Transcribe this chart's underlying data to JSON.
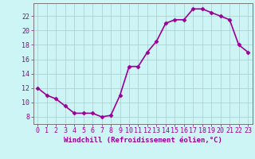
{
  "x": [
    0,
    1,
    2,
    3,
    4,
    5,
    6,
    7,
    8,
    9,
    10,
    11,
    12,
    13,
    14,
    15,
    16,
    17,
    18,
    19,
    20,
    21,
    22,
    23
  ],
  "y": [
    12,
    11,
    10.5,
    9.5,
    8.5,
    8.5,
    8.5,
    8,
    8.2,
    11,
    15,
    15,
    17,
    18.5,
    21,
    21.5,
    21.5,
    23,
    23,
    22.5,
    22,
    21.5,
    18,
    17
  ],
  "line_color": "#990099",
  "marker": "D",
  "marker_size": 2.5,
  "bg_color": "#cef5f5",
  "grid_color": "#aacccc",
  "xlabel": "Windchill (Refroidissement éolien,°C)",
  "xlabel_fontsize": 6.5,
  "xtick_labels": [
    "0",
    "1",
    "2",
    "3",
    "4",
    "5",
    "6",
    "7",
    "8",
    "9",
    "10",
    "11",
    "12",
    "13",
    "14",
    "15",
    "16",
    "17",
    "18",
    "19",
    "20",
    "21",
    "22",
    "23"
  ],
  "ytick_labels": [
    "8",
    "10",
    "12",
    "14",
    "16",
    "18",
    "20",
    "22"
  ],
  "yticks": [
    8,
    10,
    12,
    14,
    16,
    18,
    20,
    22
  ],
  "ylim": [
    7.0,
    23.8
  ],
  "xlim": [
    -0.5,
    23.5
  ],
  "tick_color": "#990099",
  "tick_fontsize": 6,
  "spine_color": "#777777",
  "line_width": 1.2
}
